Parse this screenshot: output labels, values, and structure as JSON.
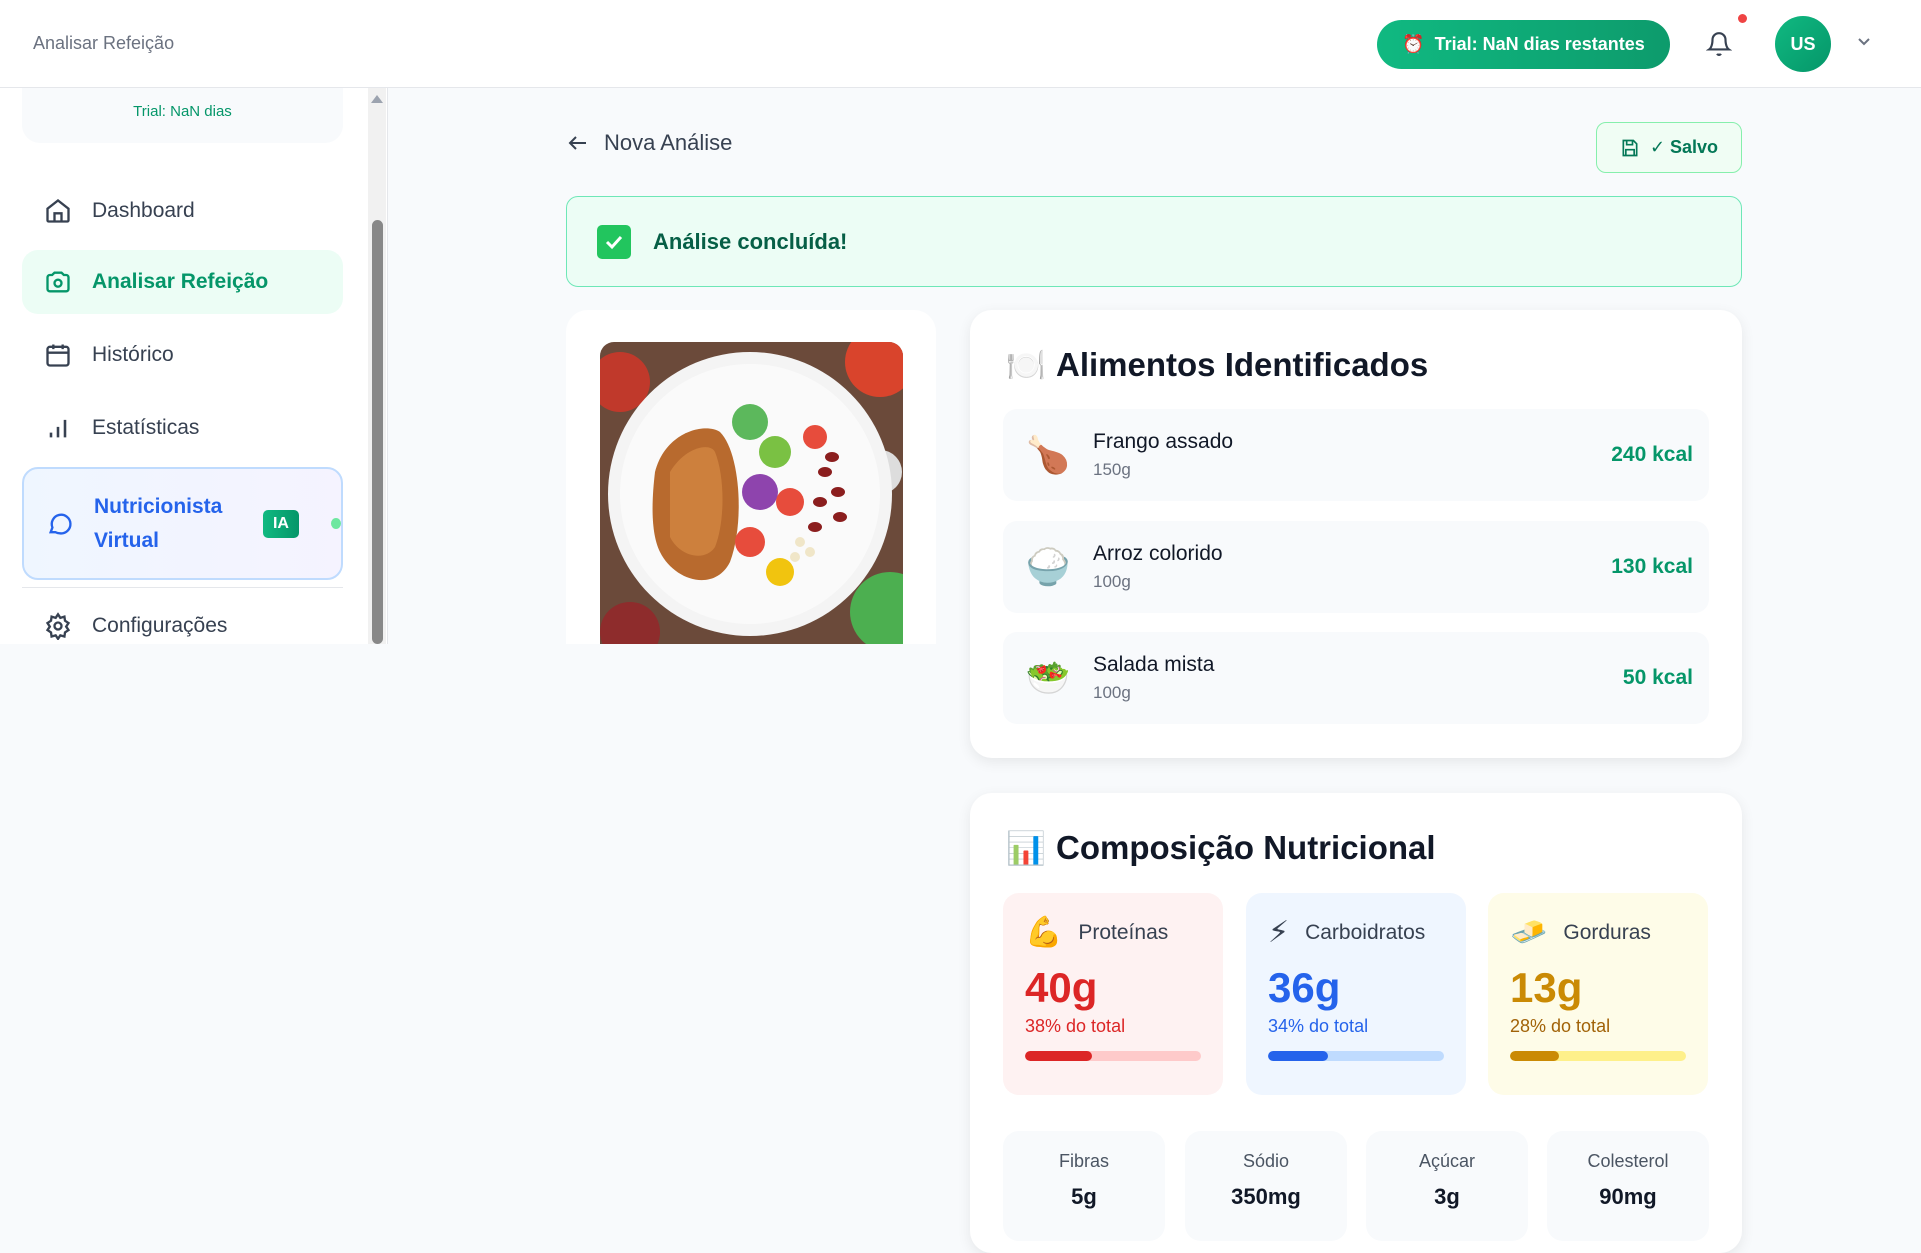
{
  "header": {
    "title": "Analisar Refeição",
    "trial_label": "Trial: NaN dias restantes",
    "avatar_initials": "US",
    "notification": true
  },
  "sidebar": {
    "trial_text": "Trial: NaN dias",
    "items": [
      {
        "label": "Dashboard",
        "icon": "home-icon"
      },
      {
        "label": "Analisar Refeição",
        "icon": "camera-icon",
        "active": true
      },
      {
        "label": "Histórico",
        "icon": "calendar-icon"
      },
      {
        "label": "Estatísticas",
        "icon": "bar-chart-icon"
      },
      {
        "label": "Nutricionista Virtual",
        "icon": "chat-icon",
        "badge": "IA"
      },
      {
        "label": "Configurações",
        "icon": "gear-icon"
      }
    ]
  },
  "main": {
    "back_label": "Nova Análise",
    "saved_label": "✓ Salvo",
    "banner": "Análise concluída!",
    "foods": {
      "title": "Alimentos Identificados",
      "items": [
        {
          "name": "Frango assado",
          "qty": "150g",
          "kcal": "240 kcal",
          "emoji": "🍗"
        },
        {
          "name": "Arroz colorido",
          "qty": "100g",
          "kcal": "130 kcal",
          "emoji": "🍚"
        },
        {
          "name": "Salada mista",
          "qty": "100g",
          "kcal": "50 kcal",
          "emoji": "🥗"
        }
      ]
    },
    "composition": {
      "title": "Composição Nutricional",
      "macros": [
        {
          "label": "Proteínas",
          "value": "40g",
          "pct_text": "38% do total",
          "pct": 38,
          "emoji": "💪",
          "color": "#dc2626"
        },
        {
          "label": "Carboidratos",
          "value": "36g",
          "pct_text": "34% do total",
          "pct": 34,
          "emoji": "⚡",
          "color": "#2563eb"
        },
        {
          "label": "Gorduras",
          "value": "13g",
          "pct_text": "28% do total",
          "pct": 28,
          "emoji": "🧈",
          "color": "#ca8a04"
        }
      ],
      "micros": [
        {
          "label": "Fibras",
          "value": "5g"
        },
        {
          "label": "Sódio",
          "value": "350mg"
        },
        {
          "label": "Açúcar",
          "value": "3g"
        },
        {
          "label": "Colesterol",
          "value": "90mg"
        }
      ]
    }
  }
}
